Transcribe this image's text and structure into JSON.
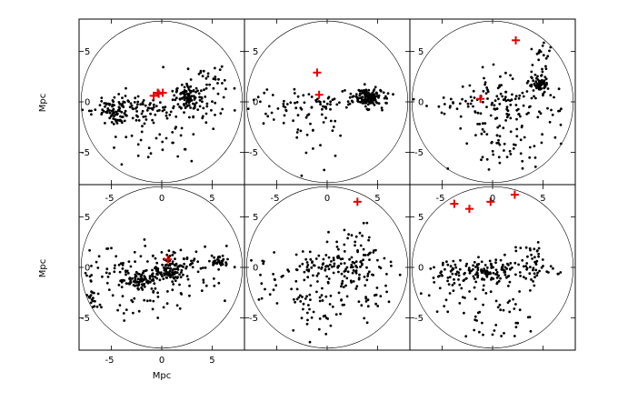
{
  "chart_data": {
    "type": "scatter",
    "grid": false,
    "layout": "2x3",
    "xlim": [
      -8.2,
      8.2
    ],
    "ylim": [
      -8.2,
      8.2
    ],
    "xlabel": "Mpc",
    "ylabel": "Mpc",
    "x_ticks": [
      -5,
      0,
      5
    ],
    "y_ticks": [
      -5,
      0,
      5
    ],
    "circle_radius": 8.0,
    "colors": {
      "points": "#000000",
      "markers": "#e60000"
    },
    "panels": [
      {
        "id": "top-left",
        "clusters": [
          {
            "c": [
              -4.5,
              -1.2
            ],
            "s": [
              0.9,
              0.6
            ],
            "n": 55
          },
          {
            "c": [
              2.6,
              0.5
            ],
            "s": [
              0.6,
              0.6
            ],
            "n": 70
          },
          {
            "c": [
              -1.0,
              -0.5
            ],
            "s": [
              3.5,
              0.8
            ],
            "n": 120
          },
          {
            "c": [
              4.5,
              1.8
            ],
            "s": [
              1.6,
              1.0
            ],
            "n": 40
          },
          {
            "c": [
              -0.5,
              -3.0
            ],
            "s": [
              2.5,
              1.6
            ],
            "n": 45
          }
        ],
        "markers": [
          [
            -0.8,
            0.6
          ],
          [
            -0.4,
            0.9
          ],
          [
            0.1,
            0.9
          ],
          [
            -0.3,
            0.8
          ]
        ]
      },
      {
        "id": "top-middle",
        "clusters": [
          {
            "c": [
              4.0,
              0.4
            ],
            "s": [
              0.7,
              0.45
            ],
            "n": 130
          },
          {
            "c": [
              0.0,
              0.0
            ],
            "s": [
              3.5,
              0.55
            ],
            "n": 70
          },
          {
            "c": [
              -1.0,
              -2.5
            ],
            "s": [
              1.3,
              1.6
            ],
            "n": 30
          },
          {
            "c": [
              -5.5,
              -0.8
            ],
            "s": [
              1.0,
              0.8
            ],
            "n": 12
          }
        ],
        "markers": [
          [
            -1.0,
            2.9
          ],
          [
            -0.8,
            0.7
          ]
        ]
      },
      {
        "id": "top-right",
        "clusters": [
          {
            "c": [
              4.6,
              1.7
            ],
            "s": [
              0.5,
              0.45
            ],
            "n": 60
          },
          {
            "c": [
              1.5,
              -0.5
            ],
            "s": [
              2.5,
              1.5
            ],
            "n": 130
          },
          {
            "c": [
              -3.5,
              -0.2
            ],
            "s": [
              1.8,
              0.6
            ],
            "n": 25
          },
          {
            "c": [
              1.5,
              -4.5
            ],
            "s": [
              2.5,
              1.2
            ],
            "n": 40
          },
          {
            "c": [
              5.0,
              4.2
            ],
            "s": [
              0.6,
              1.2
            ],
            "n": 20
          }
        ],
        "markers": [
          [
            -1.2,
            0.3
          ],
          [
            2.3,
            6.1
          ]
        ]
      },
      {
        "id": "bottom-left",
        "clusters": [
          {
            "c": [
              -2.2,
              -1.2
            ],
            "s": [
              0.8,
              0.5
            ],
            "n": 60
          },
          {
            "c": [
              1.0,
              -0.2
            ],
            "s": [
              0.9,
              0.6
            ],
            "n": 90
          },
          {
            "c": [
              5.8,
              0.6
            ],
            "s": [
              0.4,
              0.35
            ],
            "n": 30
          },
          {
            "c": [
              -7.0,
              -3.2
            ],
            "s": [
              0.4,
              0.5
            ],
            "n": 20
          },
          {
            "c": [
              -1.0,
              -0.4
            ],
            "s": [
              4.0,
              1.2
            ],
            "n": 150
          },
          {
            "c": [
              -1.5,
              -3.5
            ],
            "s": [
              2.0,
              1.0
            ],
            "n": 30
          }
        ],
        "markers": [
          [
            0.6,
            0.8
          ]
        ]
      },
      {
        "id": "bottom-middle",
        "clusters": [
          {
            "c": [
              0.8,
              0.0
            ],
            "s": [
              2.8,
              0.9
            ],
            "n": 130
          },
          {
            "c": [
              -1.5,
              -4.0
            ],
            "s": [
              1.5,
              1.5
            ],
            "n": 45
          },
          {
            "c": [
              3.0,
              -3.0
            ],
            "s": [
              1.6,
              1.5
            ],
            "n": 40
          },
          {
            "c": [
              -5.5,
              -1.5
            ],
            "s": [
              1.2,
              0.9
            ],
            "n": 15
          },
          {
            "c": [
              3.5,
              2.0
            ],
            "s": [
              1.5,
              1.0
            ],
            "n": 25
          }
        ],
        "markers": [
          [
            3.0,
            6.5
          ]
        ]
      },
      {
        "id": "bottom-right",
        "clusters": [
          {
            "c": [
              0.0,
              -0.3
            ],
            "s": [
              3.0,
              0.6
            ],
            "n": 160
          },
          {
            "c": [
              0.5,
              -4.5
            ],
            "s": [
              2.5,
              1.6
            ],
            "n": 60
          },
          {
            "c": [
              3.8,
              1.0
            ],
            "s": [
              0.8,
              0.6
            ],
            "n": 25
          },
          {
            "c": [
              -4.5,
              -1.5
            ],
            "s": [
              1.2,
              1.2
            ],
            "n": 20
          }
        ],
        "markers": [
          [
            -3.8,
            6.3
          ],
          [
            -2.3,
            5.8
          ],
          [
            -0.2,
            6.5
          ],
          [
            2.2,
            7.2
          ]
        ]
      }
    ]
  }
}
